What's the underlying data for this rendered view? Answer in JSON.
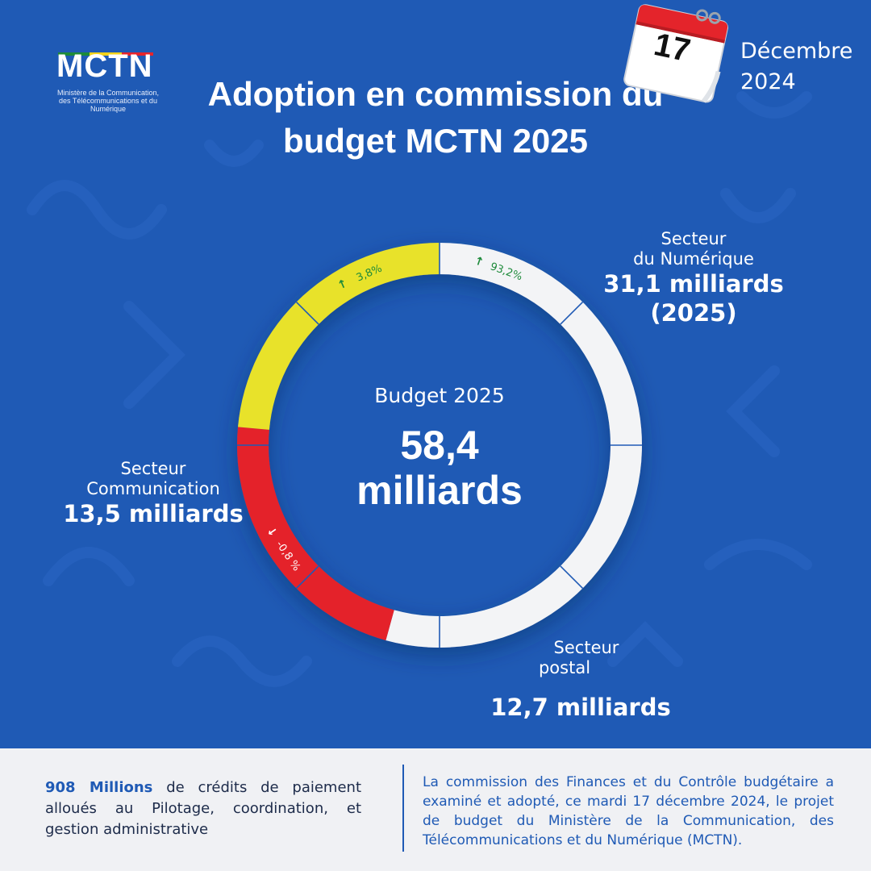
{
  "logo": {
    "title": "MCTN",
    "subtitle": "Ministère de la Communication, des Télécommunications et du Numérique"
  },
  "header": {
    "title": "Adoption en commission du budget MCTN 2025"
  },
  "date": {
    "day": "17",
    "month": "Décembre",
    "year": "2024"
  },
  "center": {
    "caption": "Budget 2025",
    "value_line1": "58,4",
    "value_line2": "milliards"
  },
  "labels": {
    "numerique": {
      "name_line1": "Secteur",
      "name_line2": "du Numérique",
      "value_line1": "31,1 milliards",
      "value_line2": "(2025)"
    },
    "communication": {
      "name_line1": "Secteur",
      "name_line2": "Communication",
      "value": "13,5 milliards"
    },
    "postal": {
      "name_line1": "Secteur",
      "name_line2": "postal",
      "value": "12,7 milliards"
    }
  },
  "footer": {
    "left_bold": "908 Millions",
    "left_text": " de crédits de  paiement alloués au Pilotage, coordination, et gestion administrative",
    "right_text": "La commission des Finances et du Contrôle budgétaire a examiné et adopté, ce mardi 17 décembre 2024, le projet de  budget du Ministère de la Communication, des Télécommunications et du Numérique  (MCTN)."
  },
  "colors": {
    "background": "#1f5ab5",
    "numerique": "#f3f4f6",
    "communication": "#e8e22a",
    "postal": "#e4242b",
    "up_arrow": "#1d8a3a",
    "footer_bg": "#f0f1f4"
  },
  "chart_data": {
    "type": "pie",
    "title": "Budget 2025",
    "total": 58.4,
    "unit": "milliards",
    "series": [
      {
        "name": "Secteur du Numérique",
        "value": 31.1,
        "change": "93,2%",
        "trend": "up",
        "color": "#f3f4f6"
      },
      {
        "name": "Secteur postal",
        "value": 12.7,
        "change": "-0,8 %",
        "trend": "down",
        "color": "#e4242b"
      },
      {
        "name": "Secteur Communication",
        "value": 13.5,
        "change": "3,8%",
        "trend": "up",
        "color": "#e8e22a"
      }
    ]
  }
}
